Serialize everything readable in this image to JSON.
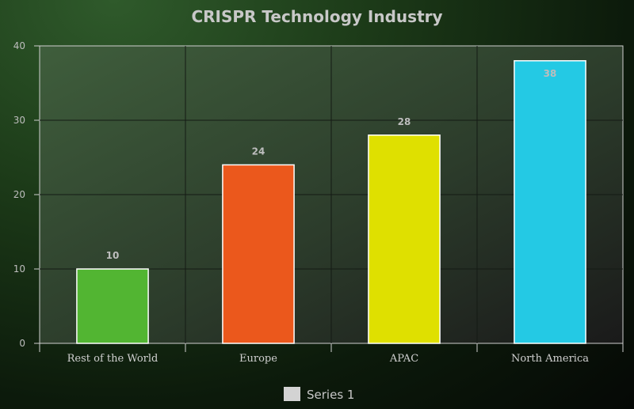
{
  "chart_data": {
    "type": "bar",
    "title": "CRISPR Technology Industry",
    "categories": [
      "Rest of the World",
      "Europe",
      "APAC",
      "North America"
    ],
    "series": [
      {
        "name": "Series 1",
        "values": [
          10,
          24,
          28,
          38
        ],
        "colors": [
          "#52b532",
          "#eb581c",
          "#dfe000",
          "#24c9e4"
        ]
      }
    ],
    "ylim": [
      0,
      40
    ],
    "yticks": [
      0,
      10,
      20,
      30,
      40
    ],
    "grid": true,
    "legend": "bottom-center",
    "legend_color": "#d3d3d3",
    "data_labels": true
  }
}
